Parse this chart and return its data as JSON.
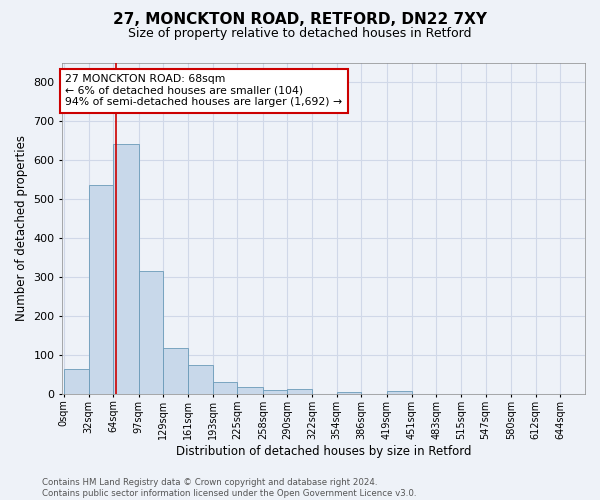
{
  "title_line1": "27, MONCKTON ROAD, RETFORD, DN22 7XY",
  "title_line2": "Size of property relative to detached houses in Retford",
  "xlabel": "Distribution of detached houses by size in Retford",
  "ylabel": "Number of detached properties",
  "bar_labels": [
    "0sqm",
    "32sqm",
    "64sqm",
    "97sqm",
    "129sqm",
    "161sqm",
    "193sqm",
    "225sqm",
    "258sqm",
    "290sqm",
    "322sqm",
    "354sqm",
    "386sqm",
    "419sqm",
    "451sqm",
    "483sqm",
    "515sqm",
    "547sqm",
    "580sqm",
    "612sqm",
    "644sqm"
  ],
  "bar_heights": [
    65,
    535,
    640,
    315,
    118,
    75,
    30,
    17,
    11,
    12,
    0,
    6,
    0,
    8,
    0,
    0,
    0,
    0,
    0,
    0,
    0
  ],
  "bar_color": "#c8d8ea",
  "bar_edge_color": "#6a9ab8",
  "grid_color": "#d0d8e8",
  "background_color": "#eef2f8",
  "annotation_text": "27 MONCKTON ROAD: 68sqm\n← 6% of detached houses are smaller (104)\n94% of semi-detached houses are larger (1,692) →",
  "annotation_box_color": "#ffffff",
  "annotation_box_edge": "#cc0000",
  "property_line_x": 68,
  "ylim": [
    0,
    850
  ],
  "yticks": [
    0,
    100,
    200,
    300,
    400,
    500,
    600,
    700,
    800
  ],
  "footer_line1": "Contains HM Land Registry data © Crown copyright and database right 2024.",
  "footer_line2": "Contains public sector information licensed under the Open Government Licence v3.0.",
  "x_vals": [
    0,
    32,
    64,
    97,
    129,
    161,
    193,
    225,
    258,
    290,
    322,
    354,
    386,
    419,
    451,
    483,
    515,
    547,
    580,
    612,
    644
  ]
}
